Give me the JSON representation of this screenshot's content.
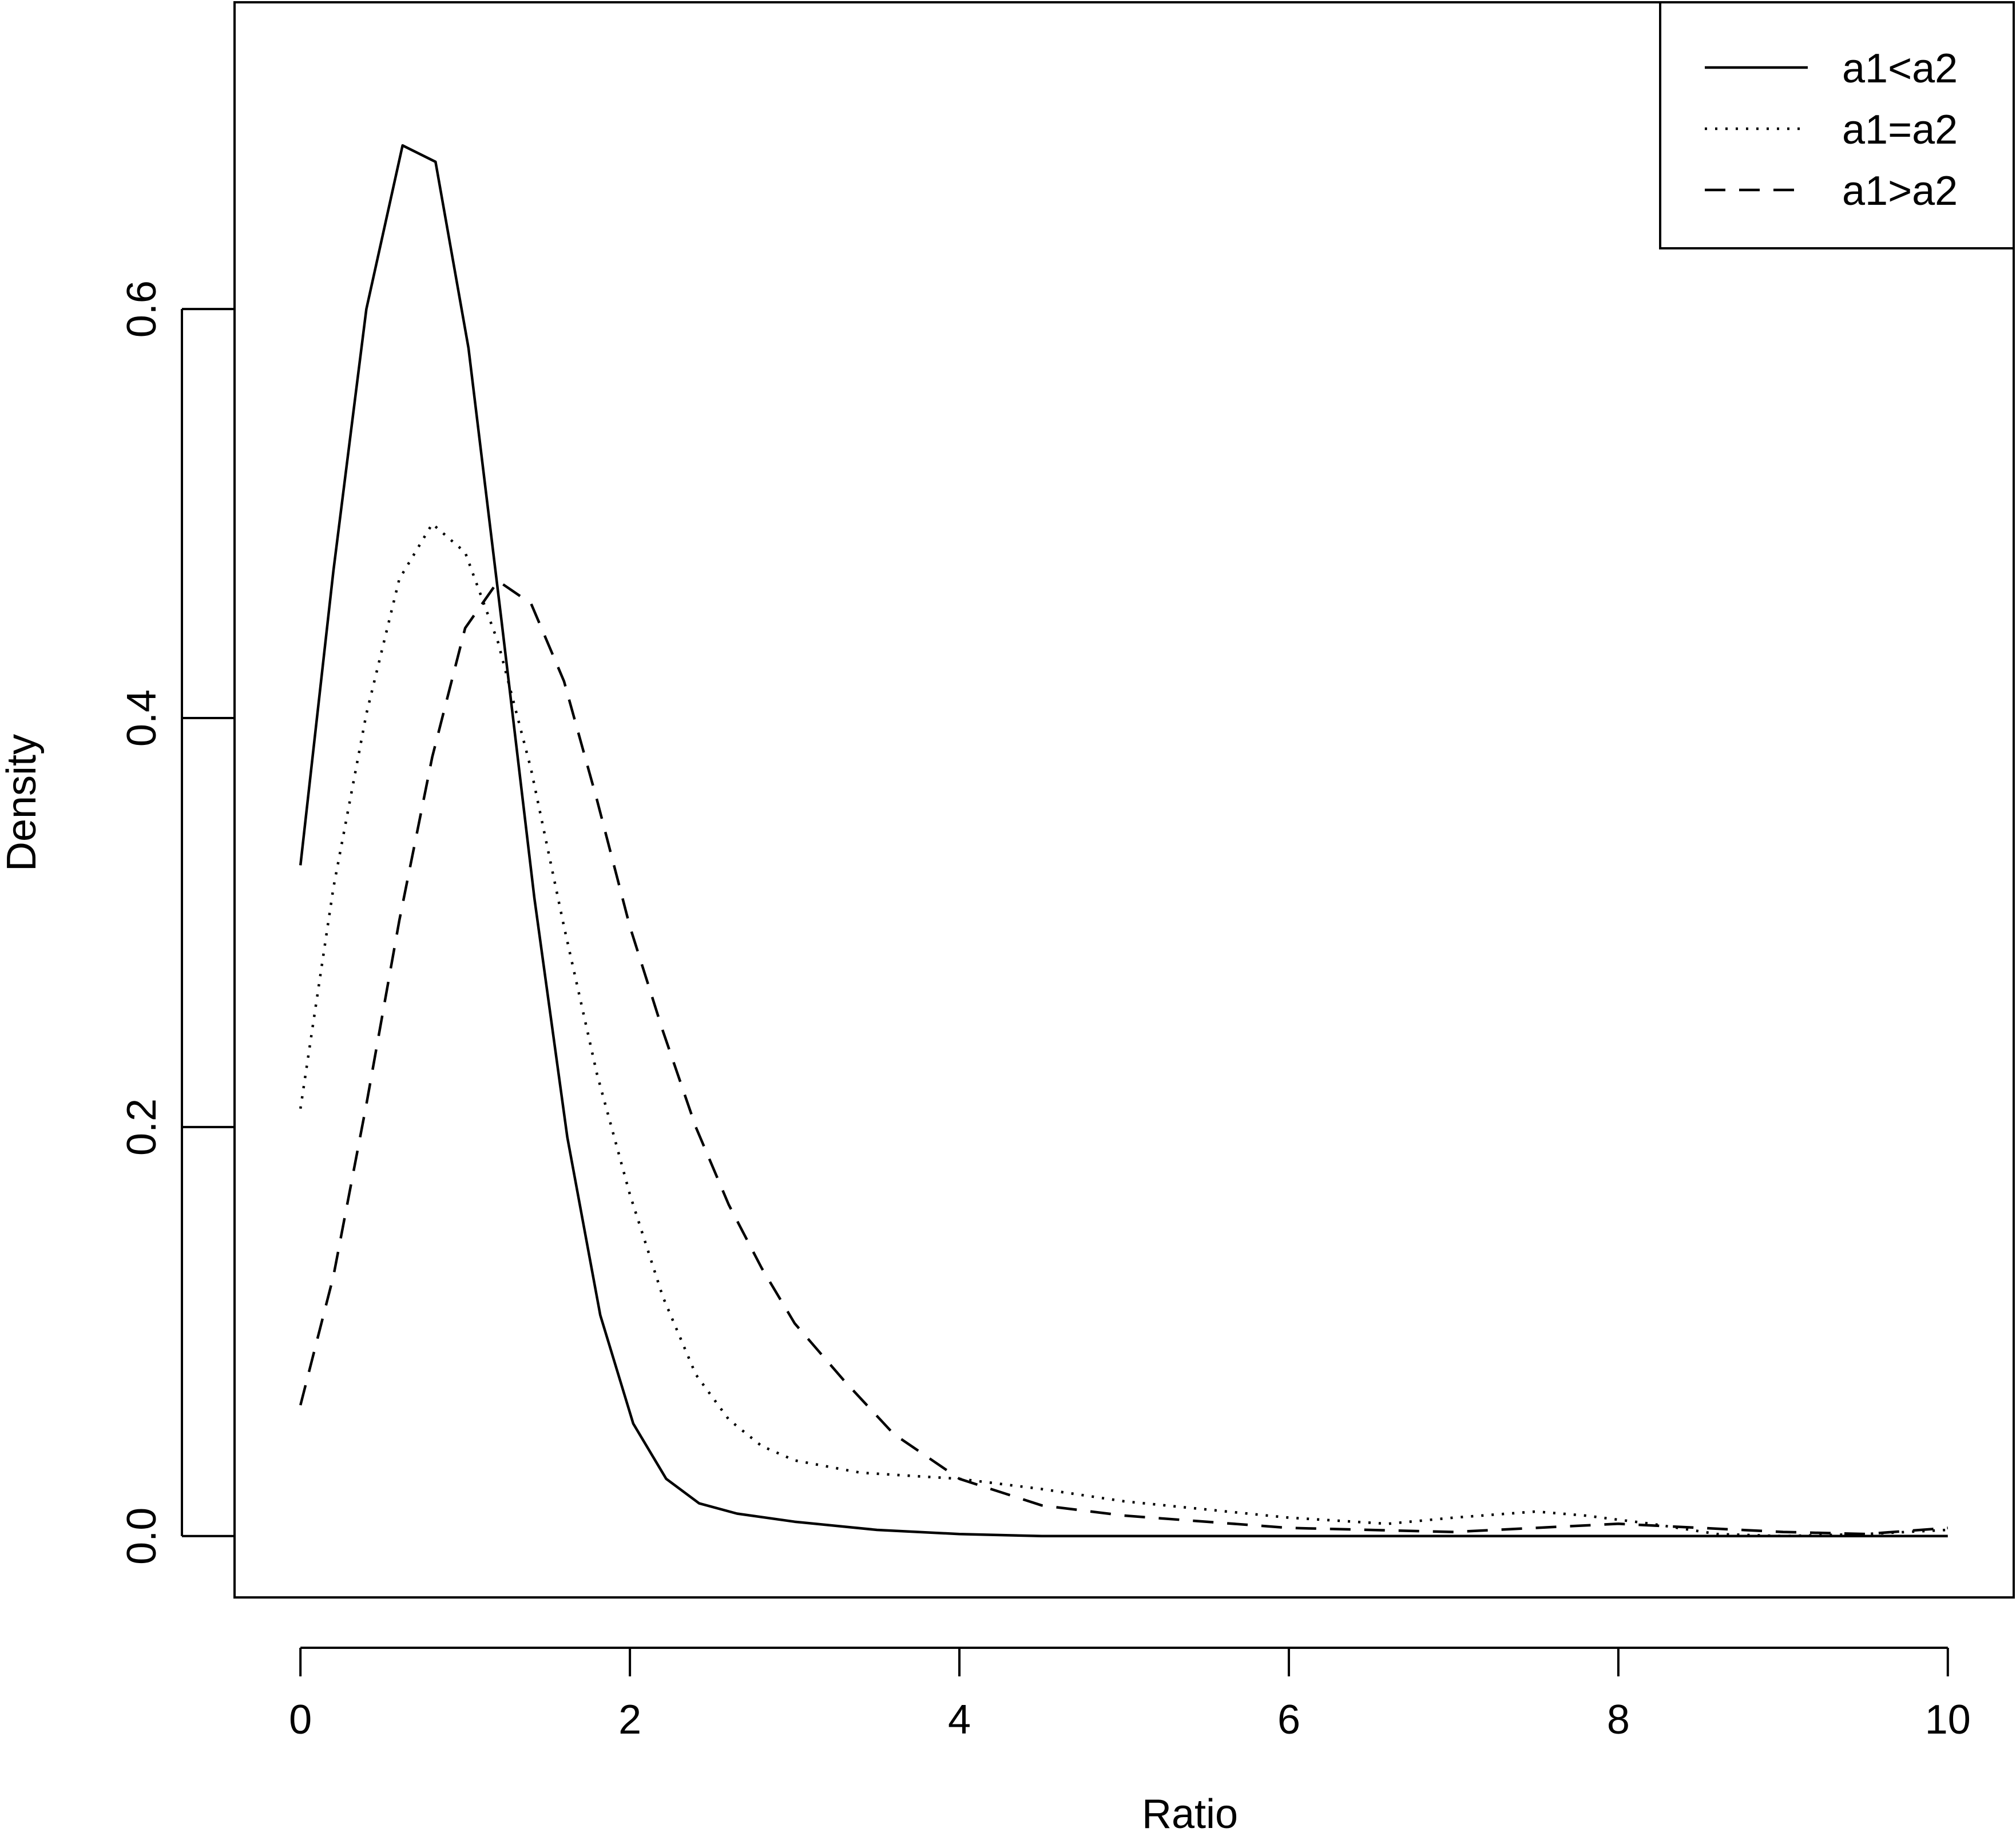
{
  "chart_data": {
    "type": "line",
    "title": "",
    "xlabel": "Ratio",
    "ylabel": "Density",
    "xlim": [
      -0.4,
      10.4
    ],
    "ylim": [
      -0.03,
      0.75
    ],
    "xticks": [
      0,
      2,
      4,
      6,
      8,
      10
    ],
    "xtick_labels": [
      "0",
      "2",
      "4",
      "6",
      "8",
      "10"
    ],
    "yticks": [
      0.0,
      0.2,
      0.4,
      0.6
    ],
    "ytick_labels": [
      "0.0",
      "0.2",
      "0.4",
      "0.6"
    ],
    "grid": false,
    "legend": {
      "position": "top-right"
    },
    "series": [
      {
        "name": "a1<a2",
        "line_style": "solid",
        "color": "#000000",
        "points": [
          [
            0.0,
            0.328
          ],
          [
            0.2,
            0.472
          ],
          [
            0.4,
            0.6
          ],
          [
            0.62,
            0.68
          ],
          [
            0.82,
            0.672
          ],
          [
            1.02,
            0.581
          ],
          [
            1.22,
            0.448
          ],
          [
            1.42,
            0.312
          ],
          [
            1.62,
            0.195
          ],
          [
            1.82,
            0.108
          ],
          [
            2.02,
            0.055
          ],
          [
            2.22,
            0.028
          ],
          [
            2.42,
            0.016
          ],
          [
            2.65,
            0.011
          ],
          [
            3.0,
            0.007
          ],
          [
            3.5,
            0.003
          ],
          [
            4.0,
            0.001
          ],
          [
            4.5,
            0.0
          ],
          [
            6.0,
            0.0
          ],
          [
            8.0,
            0.0
          ],
          [
            10.0,
            0.0
          ]
        ]
      },
      {
        "name": "a1=a2",
        "line_style": "dotted",
        "color": "#000000",
        "points": [
          [
            0.0,
            0.209
          ],
          [
            0.2,
            0.317
          ],
          [
            0.4,
            0.402
          ],
          [
            0.6,
            0.468
          ],
          [
            0.8,
            0.495
          ],
          [
            1.0,
            0.481
          ],
          [
            1.2,
            0.437
          ],
          [
            1.4,
            0.375
          ],
          [
            1.6,
            0.298
          ],
          [
            1.8,
            0.226
          ],
          [
            2.0,
            0.167
          ],
          [
            2.2,
            0.117
          ],
          [
            2.4,
            0.079
          ],
          [
            2.6,
            0.057
          ],
          [
            2.8,
            0.044
          ],
          [
            3.0,
            0.037
          ],
          [
            3.4,
            0.031
          ],
          [
            4.0,
            0.028
          ],
          [
            4.5,
            0.023
          ],
          [
            5.0,
            0.017
          ],
          [
            5.5,
            0.013
          ],
          [
            6.0,
            0.009
          ],
          [
            6.6,
            0.006
          ],
          [
            7.0,
            0.009
          ],
          [
            7.5,
            0.012
          ],
          [
            7.8,
            0.01
          ],
          [
            8.2,
            0.006
          ],
          [
            8.6,
            0.001
          ],
          [
            9.0,
            0.0
          ],
          [
            9.5,
            0.001
          ],
          [
            10.0,
            0.003
          ]
        ]
      },
      {
        "name": "a1>a2",
        "line_style": "dashed",
        "color": "#000000",
        "points": [
          [
            0.0,
            0.064
          ],
          [
            0.2,
            0.127
          ],
          [
            0.4,
            0.211
          ],
          [
            0.6,
            0.301
          ],
          [
            0.8,
            0.381
          ],
          [
            1.0,
            0.444
          ],
          [
            1.2,
            0.467
          ],
          [
            1.4,
            0.456
          ],
          [
            1.6,
            0.418
          ],
          [
            1.8,
            0.36
          ],
          [
            2.0,
            0.298
          ],
          [
            2.2,
            0.247
          ],
          [
            2.4,
            0.2
          ],
          [
            2.6,
            0.162
          ],
          [
            2.8,
            0.131
          ],
          [
            3.0,
            0.104
          ],
          [
            3.3,
            0.076
          ],
          [
            3.6,
            0.05
          ],
          [
            4.0,
            0.028
          ],
          [
            4.5,
            0.015
          ],
          [
            5.0,
            0.01
          ],
          [
            6.0,
            0.004
          ],
          [
            7.0,
            0.002
          ],
          [
            8.0,
            0.006
          ],
          [
            8.5,
            0.004
          ],
          [
            9.0,
            0.002
          ],
          [
            9.5,
            0.001
          ],
          [
            10.0,
            0.004
          ]
        ]
      }
    ]
  }
}
